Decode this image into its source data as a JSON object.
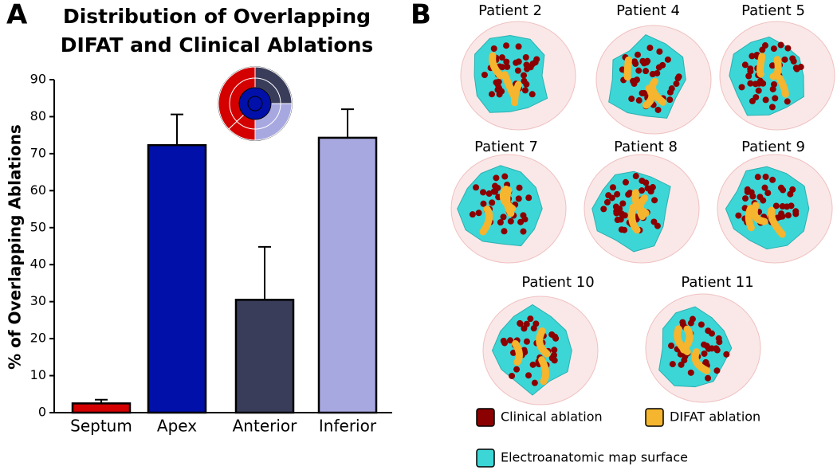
{
  "chart_data": {
    "type": "bar",
    "panel_label": "A",
    "title": [
      "Distribution of Overlapping",
      "DIFAT and Clinical Ablations"
    ],
    "ylabel": "% of Overlapping Ablations",
    "categories": [
      "Septum",
      "Apex",
      "Anterior",
      "Inferior"
    ],
    "values": [
      2.5,
      72.3,
      30.5,
      74.3
    ],
    "errors": [
      1.0,
      8.3,
      14.3,
      7.7
    ],
    "colors": [
      "#d40000",
      "#0010a8",
      "#3a3d5a",
      "#a8a8e0"
    ],
    "ylim": [
      0,
      90
    ],
    "yticks": [
      0,
      10,
      20,
      30,
      40,
      50,
      60,
      70,
      80,
      90
    ]
  },
  "panel_b": {
    "label": "B",
    "patients": [
      "Patient 2",
      "Patient 4",
      "Patient 5",
      "Patient 7",
      "Patient 8",
      "Patient 9",
      "Patient 10",
      "Patient 11"
    ],
    "legend": [
      {
        "name": "Clinical ablation",
        "color": "#8b0000"
      },
      {
        "name": "DIFAT ablation",
        "color": "#f5b52e"
      },
      {
        "name": "Electroanatomic map surface",
        "color": "#3cd6d6"
      }
    ]
  }
}
